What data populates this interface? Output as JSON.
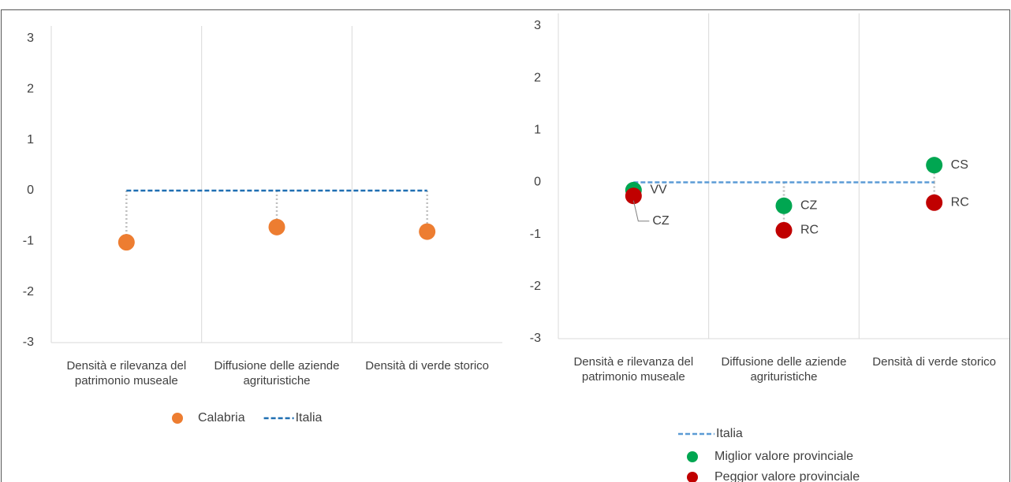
{
  "chart_data": [
    {
      "type": "dot",
      "categories": [
        "Densità e rilevanza del patrimonio museale",
        "Diffusione delle aziende agrituristiche",
        "Densità di verde storico"
      ],
      "ylim": [
        -3,
        3
      ],
      "yticks": [
        -3,
        -2,
        -1,
        0,
        1,
        2,
        3
      ],
      "grid": true,
      "legend": "bottom",
      "series": [
        {
          "name": "Calabria",
          "color": "#ed7d31",
          "style": "dot",
          "values": [
            -1.02,
            -0.72,
            -0.81
          ]
        },
        {
          "name": "Italia",
          "color": "#1f6fb2",
          "style": "dashed",
          "values": [
            0,
            0,
            0
          ]
        }
      ]
    },
    {
      "type": "dot",
      "categories": [
        "Densità e rilevanza del patrimonio museale",
        "Diffusione delle aziende agrituristiche",
        "Densità di verde storico"
      ],
      "ylim": [
        -3,
        3
      ],
      "yticks": [
        -3,
        -2,
        -1,
        0,
        1,
        2,
        3
      ],
      "grid": true,
      "legend": "bottom",
      "series": [
        {
          "name": "Italia",
          "color": "#5b9bd5",
          "style": "dashed",
          "values": [
            0,
            0,
            0
          ]
        },
        {
          "name": "Miglior valore provinciale",
          "color": "#00a651",
          "style": "dot",
          "values": [
            -0.15,
            -0.45,
            0.33
          ],
          "point_labels": [
            "VV",
            "CZ",
            "CS"
          ]
        },
        {
          "name": "Peggior valore provinciale",
          "color": "#c00000",
          "style": "dot",
          "values": [
            -0.26,
            -0.92,
            -0.39
          ],
          "point_labels": [
            "CZ",
            "RC",
            "RC"
          ]
        }
      ]
    }
  ]
}
